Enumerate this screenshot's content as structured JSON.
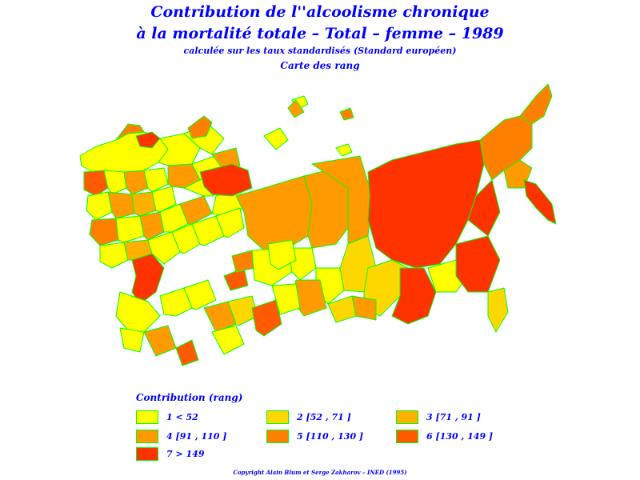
{
  "title": {
    "line1": "Contribution de l''alcoolisme chronique",
    "line2": "à la mortalité totale  –  Total  –  femme  –  1989",
    "line3": "calculée sur les taux standardisés (Standard européen)",
    "line4": "Carte des rang"
  },
  "legend": {
    "title": "Contribution (rang)",
    "items": [
      {
        "label": "1  <  52",
        "color": "#ffff00"
      },
      {
        "label": "2 [52 ,  71 ]",
        "color": "#ffd700"
      },
      {
        "label": "3 [71 ,  91 ]",
        "color": "#ffb000"
      },
      {
        "label": "4 [91 ,  110 ]",
        "color": "#ff9a00"
      },
      {
        "label": "5 [110 ,  130 ]",
        "color": "#ff8000"
      },
      {
        "label": "6 [130 ,  149 ]",
        "color": "#ff5a00"
      },
      {
        "label": "7  >  149",
        "color": "#ff3300"
      }
    ]
  },
  "copyright": "Copyright Alain Blum et Serge Zakharov  –  INED (1995)",
  "colors": {
    "text": "#0000ff",
    "border": "#00ff00"
  }
}
